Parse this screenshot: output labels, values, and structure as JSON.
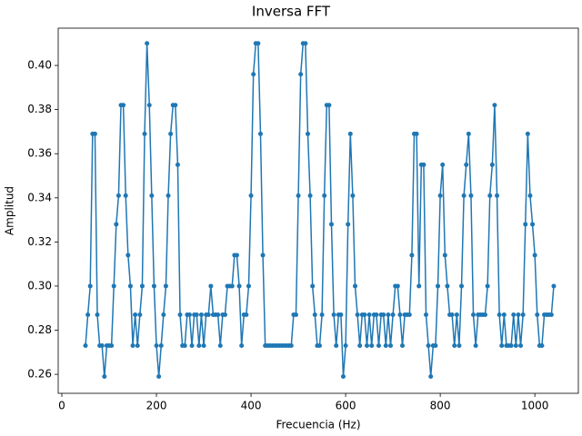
{
  "chart_data": {
    "type": "line",
    "title": "Inversa FFT",
    "x_label": "Frecuencia (Hz)",
    "y_label": "Amplitud",
    "color": "#1f77b4",
    "x": [
      50,
      55,
      60,
      65,
      70,
      75,
      80,
      85,
      90,
      95,
      100,
      105,
      110,
      115,
      120,
      125,
      130,
      135,
      140,
      145,
      150,
      155,
      160,
      165,
      170,
      175,
      180,
      185,
      190,
      195,
      200,
      205,
      210,
      215,
      220,
      225,
      230,
      235,
      240,
      245,
      250,
      255,
      260,
      265,
      270,
      275,
      280,
      285,
      290,
      295,
      300,
      305,
      310,
      315,
      320,
      325,
      330,
      335,
      340,
      345,
      350,
      355,
      360,
      365,
      370,
      375,
      380,
      385,
      390,
      395,
      400,
      405,
      410,
      415,
      420,
      425,
      430,
      435,
      440,
      445,
      450,
      455,
      460,
      465,
      470,
      475,
      480,
      485,
      490,
      495,
      500,
      505,
      510,
      515,
      520,
      525,
      530,
      535,
      540,
      545,
      550,
      555,
      560,
      565,
      570,
      575,
      580,
      585,
      590,
      595,
      600,
      605,
      610,
      615,
      620,
      625,
      630,
      635,
      640,
      645,
      650,
      655,
      660,
      665,
      670,
      675,
      680,
      685,
      690,
      695,
      700,
      705,
      710,
      715,
      720,
      725,
      730,
      735,
      740,
      745,
      750,
      755,
      760,
      765,
      770,
      775,
      780,
      785,
      790,
      795,
      800,
      805,
      810,
      815,
      820,
      825,
      830,
      835,
      840,
      845,
      850,
      855,
      860,
      865,
      870,
      875,
      880,
      885,
      890,
      895,
      900,
      905,
      910,
      915,
      920,
      925,
      930,
      935,
      940,
      945,
      950,
      955,
      960,
      965,
      970,
      975,
      980,
      985,
      990,
      995,
      1000,
      1005,
      1010,
      1015,
      1020,
      1025,
      1030,
      1035,
      1040
    ],
    "values": [
      0.273,
      0.287,
      0.3,
      0.369,
      0.369,
      0.287,
      0.273,
      0.273,
      0.259,
      0.273,
      0.273,
      0.273,
      0.3,
      0.328,
      0.341,
      0.382,
      0.382,
      0.341,
      0.314,
      0.3,
      0.273,
      0.287,
      0.273,
      0.287,
      0.3,
      0.369,
      0.41,
      0.382,
      0.341,
      0.3,
      0.273,
      0.259,
      0.273,
      0.287,
      0.3,
      0.341,
      0.369,
      0.382,
      0.382,
      0.355,
      0.287,
      0.273,
      0.273,
      0.287,
      0.287,
      0.273,
      0.287,
      0.287,
      0.273,
      0.287,
      0.273,
      0.287,
      0.287,
      0.3,
      0.287,
      0.287,
      0.287,
      0.273,
      0.287,
      0.287,
      0.3,
      0.3,
      0.3,
      0.314,
      0.314,
      0.3,
      0.273,
      0.287,
      0.287,
      0.3,
      0.341,
      0.396,
      0.41,
      0.41,
      0.369,
      0.314,
      0.273,
      0.273,
      0.273,
      0.273,
      0.273,
      0.273,
      0.273,
      0.273,
      0.273,
      0.273,
      0.273,
      0.273,
      0.287,
      0.287,
      0.341,
      0.396,
      0.41,
      0.41,
      0.369,
      0.341,
      0.3,
      0.287,
      0.273,
      0.273,
      0.287,
      0.341,
      0.382,
      0.382,
      0.328,
      0.287,
      0.273,
      0.287,
      0.287,
      0.259,
      0.273,
      0.328,
      0.369,
      0.341,
      0.3,
      0.287,
      0.273,
      0.287,
      0.287,
      0.273,
      0.287,
      0.273,
      0.287,
      0.287,
      0.273,
      0.287,
      0.287,
      0.273,
      0.287,
      0.273,
      0.287,
      0.3,
      0.3,
      0.287,
      0.273,
      0.287,
      0.287,
      0.287,
      0.314,
      0.369,
      0.369,
      0.3,
      0.355,
      0.355,
      0.287,
      0.273,
      0.259,
      0.273,
      0.273,
      0.3,
      0.341,
      0.355,
      0.314,
      0.3,
      0.287,
      0.287,
      0.273,
      0.287,
      0.273,
      0.3,
      0.341,
      0.355,
      0.369,
      0.341,
      0.287,
      0.273,
      0.287,
      0.287,
      0.287,
      0.287,
      0.3,
      0.341,
      0.355,
      0.382,
      0.341,
      0.287,
      0.273,
      0.287,
      0.273,
      0.273,
      0.273,
      0.287,
      0.273,
      0.287,
      0.273,
      0.287,
      0.328,
      0.369,
      0.341,
      0.328,
      0.314,
      0.287,
      0.273,
      0.273,
      0.287,
      0.287,
      0.287,
      0.287,
      0.3
    ],
    "xlim": [
      -7.7,
      1092
    ],
    "ylim": [
      0.2514,
      0.4169
    ],
    "xticks": [
      0,
      200,
      400,
      600,
      800,
      1000
    ],
    "yticks": [
      0.26,
      0.28,
      {
        "value": 0.3,
        "label": "0.30"
      },
      0.32,
      0.34,
      0.36,
      0.38,
      {
        "value": 0.4,
        "label": "0.40"
      }
    ]
  }
}
